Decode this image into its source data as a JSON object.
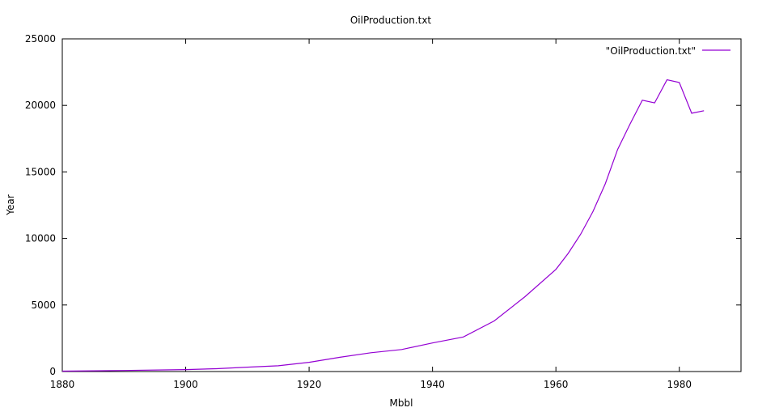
{
  "chart_data": {
    "type": "line",
    "title": "OilProduction.txt",
    "xlabel": "Mbbl",
    "ylabel": "Year",
    "xlim": [
      1880,
      1990
    ],
    "ylim": [
      0,
      25000
    ],
    "xticks": [
      1880,
      1900,
      1920,
      1940,
      1960,
      1980
    ],
    "yticks": [
      0,
      5000,
      10000,
      15000,
      20000,
      25000
    ],
    "grid": false,
    "legend_position": "top-right",
    "series": [
      {
        "name": "\"OilProduction.txt\"",
        "color": "#9400d3",
        "x": [
          1880,
          1890,
          1900,
          1905,
          1910,
          1915,
          1920,
          1925,
          1930,
          1935,
          1940,
          1945,
          1950,
          1955,
          1960,
          1962,
          1964,
          1966,
          1968,
          1970,
          1972,
          1974,
          1976,
          1978,
          1980,
          1982,
          1984
        ],
        "y": [
          30,
          77,
          149,
          215,
          328,
          432,
          695,
          1068,
          1412,
          1655,
          2150,
          2595,
          3803,
          5626,
          7674,
          8882,
          10310,
          12016,
          14104,
          16690,
          18584,
          20389,
          20188,
          21922,
          21722,
          19411,
          19600
        ]
      }
    ]
  }
}
